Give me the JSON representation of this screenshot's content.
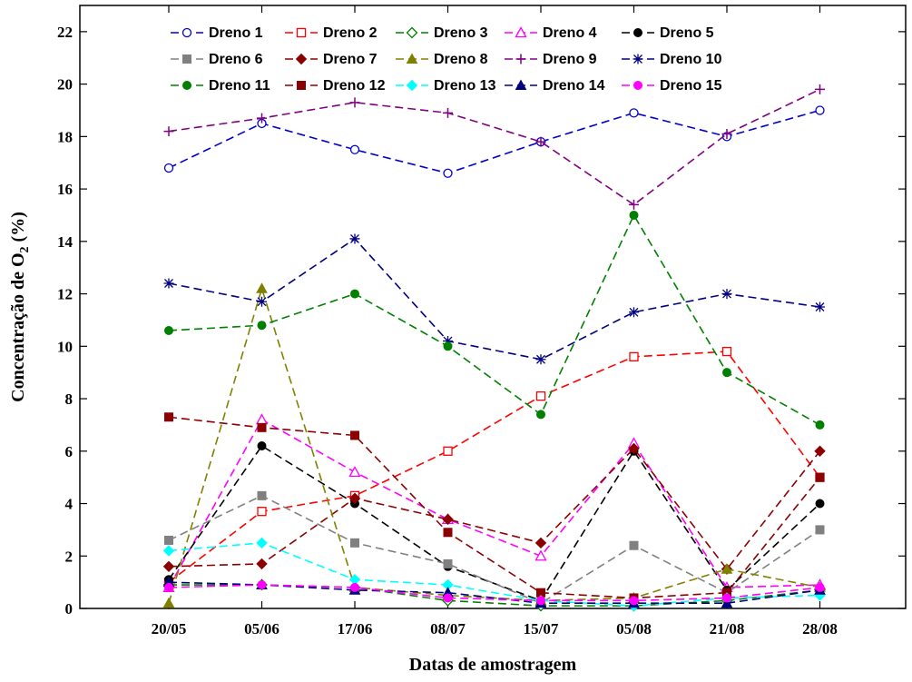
{
  "chart_data": {
    "type": "line",
    "xlabel": "Datas de amostragem",
    "ylabel_main": "Concentração de O",
    "ylabel_sub": "2",
    "ylabel_unit": " (%)",
    "categories": [
      "20/05",
      "05/06",
      "17/06",
      "08/07",
      "15/07",
      "05/08",
      "21/08",
      "28/08"
    ],
    "yticks": [
      "0",
      "2",
      "4",
      "6",
      "8",
      "10",
      "12",
      "14",
      "16",
      "18",
      "20",
      "22"
    ],
    "ylim": [
      0,
      23
    ],
    "grid": false,
    "legend_position": "top",
    "series": [
      {
        "name": "Dreno 1",
        "color": "#0000CC",
        "marker": "open-circle",
        "values": [
          16.8,
          18.5,
          17.5,
          16.6,
          17.8,
          18.9,
          18.0,
          19.0
        ]
      },
      {
        "name": "Dreno 2",
        "color": "#FF0000",
        "marker": "open-square",
        "values": [
          1.0,
          3.7,
          4.3,
          6.0,
          8.1,
          9.6,
          9.8,
          5.0
        ]
      },
      {
        "name": "Dreno 3",
        "color": "#008000",
        "marker": "open-diamond",
        "values": [
          0.9,
          0.9,
          0.8,
          0.3,
          0.1,
          0.1,
          0.3,
          0.7
        ]
      },
      {
        "name": "Dreno 4",
        "color": "#FF00FF",
        "marker": "open-triangle",
        "values": [
          0.8,
          7.2,
          5.2,
          3.4,
          2.0,
          6.3,
          0.8,
          0.9
        ]
      },
      {
        "name": "Dreno 5",
        "color": "#000000",
        "marker": "filled-circle",
        "values": [
          1.1,
          6.2,
          4.0,
          1.6,
          0.3,
          6.0,
          0.7,
          4.0
        ]
      },
      {
        "name": "Dreno 6",
        "color": "#808080",
        "marker": "filled-square",
        "values": [
          2.6,
          4.3,
          2.5,
          1.7,
          0.2,
          2.4,
          0.6,
          3.0
        ]
      },
      {
        "name": "Dreno 7",
        "color": "#8B0000",
        "marker": "filled-diamond",
        "values": [
          1.6,
          1.7,
          4.2,
          3.4,
          2.5,
          6.1,
          1.5,
          6.0
        ]
      },
      {
        "name": "Dreno 8",
        "color": "#808000",
        "marker": "filled-triangle",
        "values": [
          0.2,
          12.2,
          0.8,
          0.5,
          0.3,
          0.4,
          1.5,
          0.8
        ]
      },
      {
        "name": "Dreno 9",
        "color": "#800080",
        "marker": "plus",
        "values": [
          18.2,
          18.7,
          19.3,
          18.9,
          17.8,
          15.4,
          18.1,
          19.8
        ]
      },
      {
        "name": "Dreno 10",
        "color": "#000080",
        "marker": "star",
        "values": [
          12.4,
          11.7,
          14.1,
          10.2,
          9.5,
          11.3,
          12.0,
          11.5
        ]
      },
      {
        "name": "Dreno 11",
        "color": "#008000",
        "marker": "filled-circle",
        "values": [
          10.6,
          10.8,
          12.0,
          10.0,
          7.4,
          15.0,
          9.0,
          7.0
        ]
      },
      {
        "name": "Dreno 12",
        "color": "#8B0000",
        "marker": "filled-square",
        "values": [
          7.3,
          6.9,
          6.6,
          2.9,
          0.6,
          0.4,
          0.6,
          5.0
        ]
      },
      {
        "name": "Dreno 13",
        "color": "#00FFFF",
        "marker": "filled-diamond",
        "values": [
          2.2,
          2.5,
          1.1,
          0.9,
          0.3,
          0.1,
          0.4,
          0.5
        ]
      },
      {
        "name": "Dreno 14",
        "color": "#000080",
        "marker": "filled-triangle",
        "values": [
          1.0,
          0.9,
          0.7,
          0.6,
          0.2,
          0.2,
          0.2,
          0.7
        ]
      },
      {
        "name": "Dreno 15",
        "color": "#FF00FF",
        "marker": "filled-circle",
        "values": [
          0.8,
          0.9,
          0.8,
          0.4,
          0.3,
          0.3,
          0.4,
          0.8
        ]
      }
    ]
  }
}
